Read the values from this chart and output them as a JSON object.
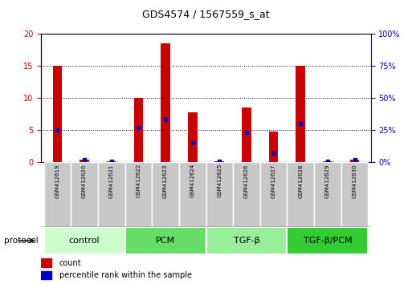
{
  "title": "GDS4574 / 1567559_s_at",
  "samples": [
    "GSM412619",
    "GSM412620",
    "GSM412621",
    "GSM412622",
    "GSM412623",
    "GSM412624",
    "GSM412625",
    "GSM412626",
    "GSM412627",
    "GSM412628",
    "GSM412629",
    "GSM412630"
  ],
  "count": [
    15.0,
    0.3,
    0.05,
    10.0,
    18.5,
    7.8,
    0.05,
    8.5,
    4.7,
    15.0,
    0.05,
    0.3
  ],
  "percentile": [
    25,
    2,
    0.5,
    27,
    33,
    15,
    0.5,
    23,
    7,
    30,
    0.5,
    2
  ],
  "left_ylim": [
    0,
    20
  ],
  "right_ylim": [
    0,
    100
  ],
  "left_yticks": [
    0,
    5,
    10,
    15,
    20
  ],
  "right_yticks": [
    0,
    25,
    50,
    75,
    100
  ],
  "right_yticklabels": [
    "0%",
    "25%",
    "50%",
    "75%",
    "100%"
  ],
  "bar_color": "#cc0000",
  "percentile_color": "#0000cc",
  "group_colors": [
    "#ccffcc",
    "#66dd66",
    "#99ee99",
    "#33cc33"
  ],
  "group_labels": [
    "control",
    "PCM",
    "TGF-β",
    "TGF-β/PCM"
  ],
  "group_starts": [
    0,
    3,
    6,
    9
  ],
  "group_ends": [
    3,
    6,
    9,
    12
  ],
  "left_axis_color": "#cc0000",
  "right_axis_color": "#0000cc",
  "bar_width": 0.35,
  "background_color": "#ffffff",
  "legend_count_label": "count",
  "legend_pct_label": "percentile rank within the sample",
  "protocol_label": "protocol",
  "sample_box_color": "#c8c8c8",
  "sample_box_edge": "#ffffff",
  "title_fontsize": 9,
  "tick_fontsize": 7,
  "sample_fontsize": 5,
  "group_fontsize": 8,
  "legend_fontsize": 7
}
